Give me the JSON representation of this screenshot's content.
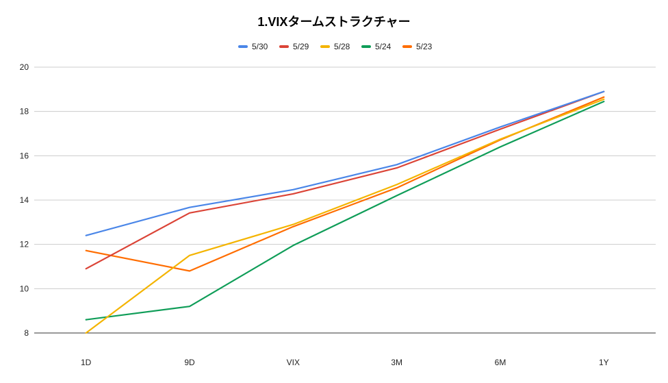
{
  "chart_data": {
    "type": "line",
    "title": "1.VIXタームストラクチャー",
    "xlabel": "",
    "ylabel": "",
    "categories": [
      "1D",
      "9D",
      "VIX",
      "3M",
      "6M",
      "1Y"
    ],
    "ylim": [
      8,
      20
    ],
    "yticks": [
      8,
      10,
      12,
      14,
      16,
      18,
      20
    ],
    "grid": true,
    "legend_position": "top",
    "series": [
      {
        "name": "5/30",
        "color": "#4a86e8",
        "values": [
          12.4,
          13.67,
          14.47,
          15.6,
          17.3,
          18.9
        ]
      },
      {
        "name": "5/29",
        "color": "#db4437",
        "values": [
          10.9,
          13.42,
          14.28,
          15.45,
          17.2,
          18.9
        ]
      },
      {
        "name": "5/28",
        "color": "#f4b400",
        "values": [
          8.0,
          11.5,
          12.9,
          14.7,
          16.75,
          18.55
        ]
      },
      {
        "name": "5/24",
        "color": "#0f9d58",
        "values": [
          8.6,
          9.2,
          11.95,
          14.2,
          16.4,
          18.45
        ]
      },
      {
        "name": "5/23",
        "color": "#ff6d00",
        "values": [
          11.72,
          10.8,
          12.8,
          14.55,
          16.72,
          18.65
        ]
      }
    ]
  }
}
